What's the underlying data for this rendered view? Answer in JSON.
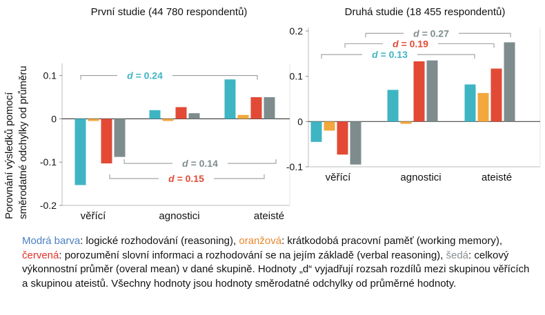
{
  "colors": {
    "reasoning": "#3fb5c3",
    "working_memory": "#f3a73d",
    "verbal_reasoning": "#e24a36",
    "overall_mean": "#7f8c8d"
  },
  "y_axis_label_line1": "Porovnání výsledků pomocí",
  "y_axis_label_line2": "směrodatné odchylky od průměru",
  "chart_data": [
    {
      "type": "bar",
      "title": "První studie  (44 780 respondentů)",
      "categories": [
        "věřící",
        "agnostici",
        "ateisté"
      ],
      "series": [
        {
          "color_key": "reasoning",
          "values": [
            -0.153,
            0.02,
            0.091
          ]
        },
        {
          "color_key": "working_memory",
          "values": [
            -0.005,
            -0.005,
            0.009
          ]
        },
        {
          "color_key": "verbal_reasoning",
          "values": [
            -0.103,
            0.027,
            0.05
          ]
        },
        {
          "color_key": "overall_mean",
          "values": [
            -0.088,
            0.013,
            0.05
          ]
        }
      ],
      "ylim": [
        -0.2,
        0.12
      ],
      "yticks": [
        {
          "v": 0.1,
          "label": "0.1"
        },
        {
          "v": 0,
          "label": "0"
        },
        {
          "v": -0.1,
          "label": "-0.1"
        },
        {
          "v": -0.2,
          "label": "-0.2"
        }
      ],
      "annotations": [
        {
          "text": "= 0.24",
          "d": "d",
          "color_key": "reasoning",
          "level": 0.1
        },
        {
          "text": "= 0.14",
          "d": "d",
          "color_key": "overall_mean",
          "level": -0.103
        },
        {
          "text": "= 0.15",
          "d": "d",
          "color_key": "verbal_reasoning",
          "level": -0.138
        }
      ]
    },
    {
      "type": "bar",
      "title": "Druhá studie  (18 455 respondentů)",
      "categories": [
        "věřící",
        "agnostici",
        "ateisté"
      ],
      "series": [
        {
          "color_key": "reasoning",
          "values": [
            -0.045,
            0.07,
            0.082
          ]
        },
        {
          "color_key": "working_memory",
          "values": [
            -0.02,
            -0.005,
            0.063
          ]
        },
        {
          "color_key": "verbal_reasoning",
          "values": [
            -0.073,
            0.133,
            0.117
          ]
        },
        {
          "color_key": "overall_mean",
          "values": [
            -0.095,
            0.135,
            0.175
          ]
        }
      ],
      "ylim": [
        -0.1,
        0.2
      ],
      "yticks": [
        {
          "v": 0.2,
          "label": "0.2"
        },
        {
          "v": 0.1,
          "label": "0.1"
        },
        {
          "v": 0,
          "label": "0"
        },
        {
          "v": -0.1,
          "label": "-0.1"
        }
      ],
      "annotations": [
        {
          "text": "= 0.27",
          "d": "d",
          "color_key": "overall_mean",
          "level": 0.195
        },
        {
          "text": "= 0.19",
          "d": "d",
          "color_key": "verbal_reasoning",
          "level": 0.172
        },
        {
          "text": "= 0.13",
          "d": "d",
          "color_key": "reasoning",
          "level": 0.148
        }
      ]
    }
  ],
  "caption": {
    "blue_label": "Modrá barva",
    "part1": ": logické rozhodování (reasoning), ",
    "orange_label": "oranžová",
    "part2": ": krátkodobá pracovní paměť (working memory), ",
    "red_label": "červená",
    "part3": ": porozumění slovní informaci a rozhodování se na jejím základě (verbal reasoning), ",
    "gray_label": "šedá",
    "part4": ": celkový výkonnostní průměr (overal mean) v dané skupině. Hodnoty „d“ vyjadřují rozsah rozdílů mezi skupinou věřících a skupinou ateistů. Všechny hodnoty jsou hodnoty směrodatné odchylky od průměrné hodnoty."
  }
}
